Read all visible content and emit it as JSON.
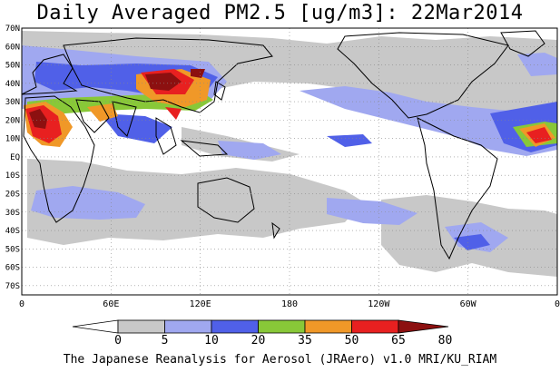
{
  "title": "Daily Averaged PM2.5 [ug/m3]: 22Mar2014",
  "footer": "The Japanese Reanalysis for Aerosol (JRAero) v1.0 MRI/KU_RIAM",
  "lat_labels": [
    "70N",
    "60N",
    "50N",
    "40N",
    "30N",
    "20N",
    "10N",
    "EQ",
    "10S",
    "20S",
    "30S",
    "40S",
    "50S",
    "60S",
    "70S"
  ],
  "lon_labels": [
    "0",
    "60E",
    "120E",
    "180",
    "120W",
    "60W",
    "0"
  ],
  "colorbar": {
    "ticks": [
      "0",
      "5",
      "10",
      "20",
      "35",
      "50",
      "65",
      "80"
    ],
    "colors": [
      "#ffffff",
      "#c8c8c8",
      "#a0a8f0",
      "#5060e8",
      "#88c838",
      "#f09828",
      "#e82020",
      "#8c1010"
    ]
  }
}
